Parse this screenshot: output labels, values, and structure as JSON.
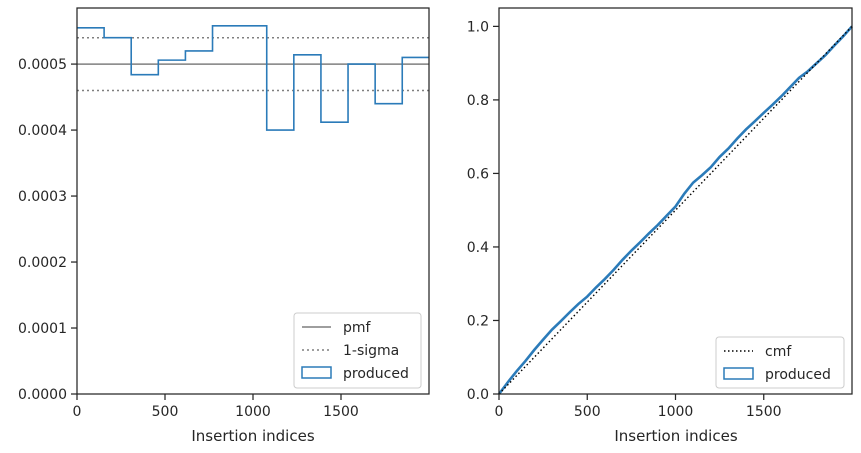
{
  "colors": {
    "produced": "#2b7bb9",
    "pmf": "#7f7f7f",
    "sigma": "#7f7f7f",
    "cmf": "#000000",
    "axes": "#262626"
  },
  "chart_data": [
    {
      "type": "step",
      "xlabel": "Insertion indices",
      "ylabel": "",
      "xlim": [
        0,
        2000
      ],
      "ylim": [
        0,
        0.000585
      ],
      "x_ticks": [
        0,
        500,
        1000,
        1500
      ],
      "x_tick_labels": [
        "0",
        "500",
        "1000",
        "1500"
      ],
      "y_ticks": [
        0,
        0.0001,
        0.0002,
        0.0003,
        0.0004,
        0.0005
      ],
      "y_tick_labels": [
        "0.0000",
        "0.0001",
        "0.0002",
        "0.0003",
        "0.0004",
        "0.0005"
      ],
      "legend": {
        "placement": "lower-right",
        "entries": [
          {
            "key": "pmf",
            "label": "pmf"
          },
          {
            "key": "sigma",
            "label": "1-sigma"
          },
          {
            "key": "produced",
            "label": "produced"
          }
        ]
      },
      "pmf": 0.0005,
      "sigma_lower": 0.00046,
      "sigma_upper": 0.00054,
      "bin_edges": [
        0,
        154,
        308,
        462,
        616,
        770,
        1078,
        1232,
        1386,
        1540,
        1694,
        1848,
        2000
      ],
      "bin_values": [
        0.000555,
        0.00054,
        0.000484,
        0.000506,
        0.00052,
        0.000558,
        0.0004,
        0.000514,
        0.000412,
        0.0005,
        0.00044,
        0.00051
      ]
    },
    {
      "type": "line",
      "xlabel": "Insertion indices",
      "ylabel": "",
      "xlim": [
        0,
        2000
      ],
      "ylim": [
        0,
        1.05
      ],
      "x_ticks": [
        0,
        500,
        1000,
        1500
      ],
      "x_tick_labels": [
        "0",
        "500",
        "1000",
        "1500"
      ],
      "y_ticks": [
        0,
        0.2,
        0.4,
        0.6,
        0.8,
        1.0
      ],
      "y_tick_labels": [
        "0.0",
        "0.2",
        "0.4",
        "0.6",
        "0.8",
        "1.0"
      ],
      "legend": {
        "placement": "lower-right",
        "entries": [
          {
            "key": "cmf",
            "label": "cmf"
          },
          {
            "key": "produced",
            "label": "produced"
          }
        ]
      },
      "cmf": {
        "x": [
          0,
          2000
        ],
        "y": [
          0,
          1
        ]
      },
      "produced": {
        "x": [
          0,
          50,
          100,
          150,
          200,
          250,
          300,
          350,
          400,
          450,
          500,
          550,
          600,
          650,
          700,
          750,
          800,
          850,
          900,
          950,
          1000,
          1050,
          1100,
          1150,
          1200,
          1250,
          1300,
          1350,
          1400,
          1450,
          1500,
          1550,
          1600,
          1650,
          1700,
          1750,
          1800,
          1850,
          1900,
          1950,
          2000
        ],
        "y": [
          0,
          0.032,
          0.062,
          0.09,
          0.12,
          0.148,
          0.175,
          0.198,
          0.222,
          0.245,
          0.265,
          0.29,
          0.313,
          0.338,
          0.365,
          0.39,
          0.413,
          0.437,
          0.46,
          0.485,
          0.51,
          0.545,
          0.575,
          0.595,
          0.617,
          0.645,
          0.668,
          0.695,
          0.72,
          0.742,
          0.765,
          0.787,
          0.81,
          0.835,
          0.86,
          0.878,
          0.9,
          0.922,
          0.948,
          0.973,
          1.0
        ]
      }
    }
  ]
}
